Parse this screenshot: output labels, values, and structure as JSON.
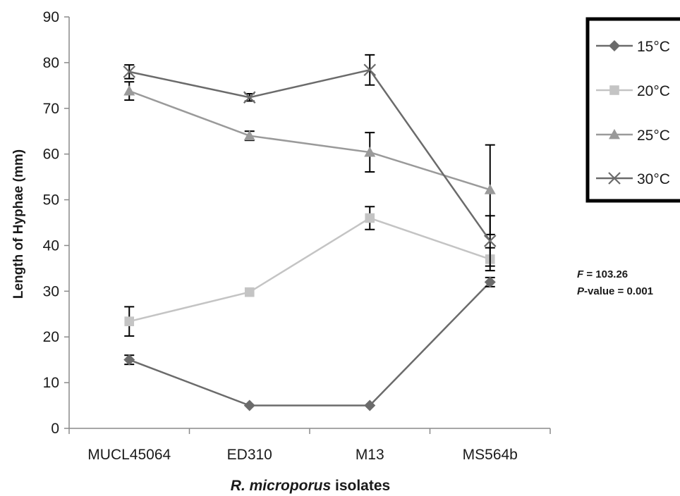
{
  "chart_data": {
    "type": "line",
    "title": "",
    "xlabel_italic": "R. microporus",
    "xlabel_rest": " isolates",
    "ylabel": "Length of Hyphae (mm)",
    "ylim": [
      0,
      90
    ],
    "yticks": [
      0,
      10,
      20,
      30,
      40,
      50,
      60,
      70,
      80,
      90
    ],
    "categories": [
      "MUCL45064",
      "ED310",
      "M13",
      "MS564b"
    ],
    "grid": false,
    "legend_position": "top-right",
    "series": [
      {
        "name": "15°C",
        "color": "#6b6b6b",
        "marker": "diamond",
        "values": [
          15,
          5,
          5,
          32
        ],
        "errors": [
          1,
          0,
          0,
          1
        ]
      },
      {
        "name": "20°C",
        "color": "#c4c4c4",
        "marker": "square",
        "values": [
          23.4,
          29.8,
          46,
          37
        ],
        "errors": [
          3.2,
          0,
          2.5,
          2.5
        ]
      },
      {
        "name": "25°C",
        "color": "#9a9a9a",
        "marker": "triangle",
        "values": [
          73.8,
          64,
          60.4,
          52.2
        ],
        "errors": [
          2,
          1,
          4.3,
          9.8
        ]
      },
      {
        "name": "30°C",
        "color": "#6b6b6b",
        "marker": "x",
        "values": [
          78,
          72.4,
          78.4,
          41
        ],
        "errors": [
          1.5,
          0.8,
          3.3,
          5.5
        ]
      }
    ],
    "annotations": {
      "f_label": "F",
      "f_value": " = 103.26",
      "p_label": "P",
      "p_value": "-value = 0.001"
    }
  }
}
